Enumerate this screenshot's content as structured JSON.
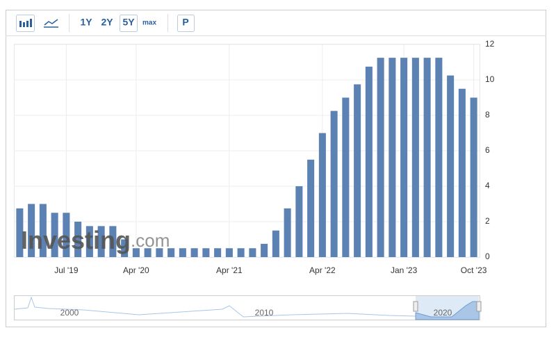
{
  "toolbar": {
    "ranges": [
      "1Y",
      "2Y",
      "5Y",
      "max"
    ],
    "print": "P"
  },
  "watermark": {
    "brand": "Investing",
    "domain": ".com"
  },
  "navigator": {
    "labels": [
      "2000",
      "2010",
      "2020"
    ]
  },
  "chart_data": {
    "type": "bar",
    "categories": [
      null,
      null,
      null,
      null,
      "Jul '19",
      null,
      null,
      null,
      null,
      null,
      "Apr '20",
      null,
      null,
      null,
      null,
      null,
      null,
      null,
      "Apr '21",
      null,
      null,
      null,
      null,
      null,
      null,
      null,
      "Apr '22",
      null,
      null,
      null,
      null,
      null,
      null,
      "Jan '23",
      null,
      null,
      null,
      null,
      null,
      "Oct '23"
    ],
    "values": [
      2.75,
      3,
      3,
      2.5,
      2.5,
      2,
      1.75,
      1.75,
      1.75,
      1,
      0.5,
      0.5,
      0.5,
      0.5,
      0.5,
      0.5,
      0.5,
      0.5,
      0.5,
      0.5,
      0.5,
      0.75,
      1.5,
      2.75,
      4,
      5.5,
      7,
      8.25,
      9,
      9.75,
      10.75,
      11.25,
      11.25,
      11.25,
      11.25,
      11.25,
      11.25,
      10.25,
      9.5,
      9
    ],
    "color": "#5b82b2",
    "ylim": [
      0,
      12
    ],
    "yticks": [
      0,
      2,
      4,
      6,
      8,
      10,
      12
    ],
    "y_axis_side": "right",
    "grid": true
  }
}
